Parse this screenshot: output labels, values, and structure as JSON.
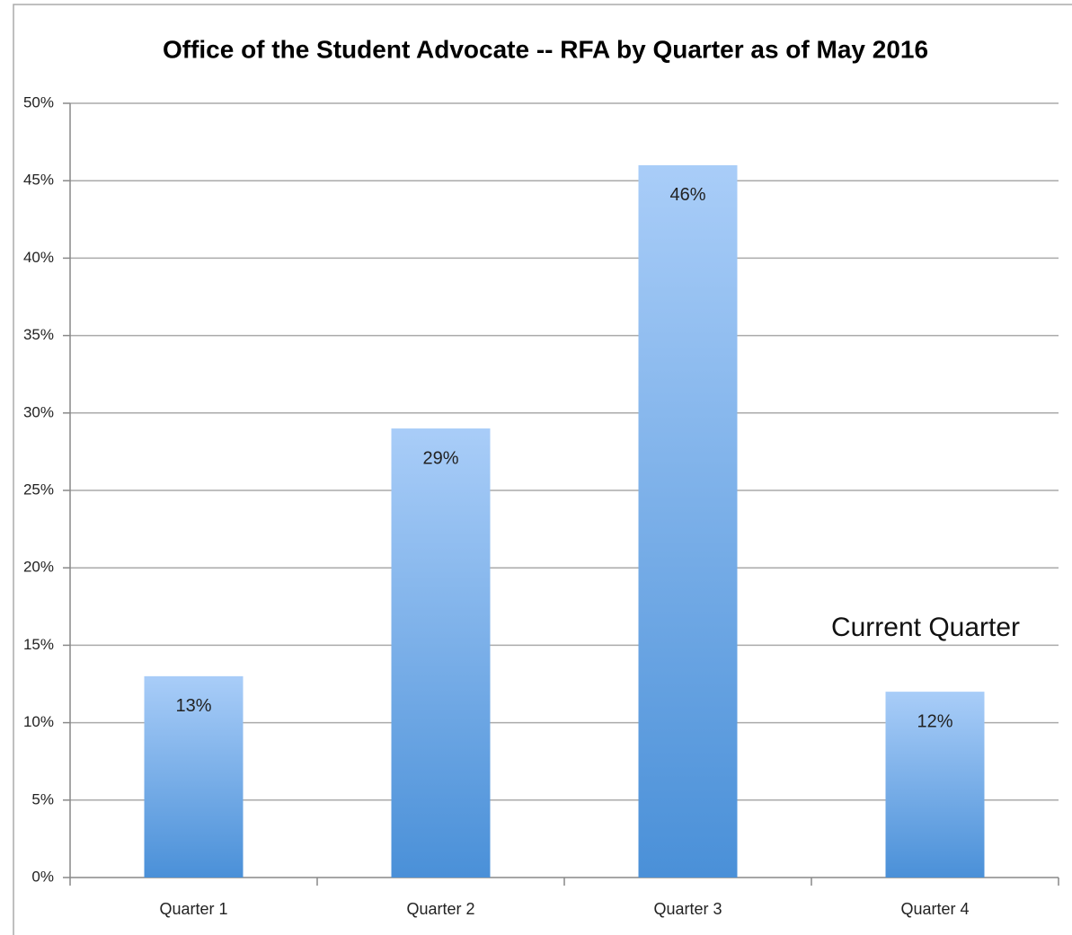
{
  "chart_data": {
    "type": "bar",
    "title": "Office of the Student Advocate -- RFA by Quarter as of May 2016",
    "categories": [
      "Quarter 1",
      "Quarter 2",
      "Quarter 3",
      "Quarter 4"
    ],
    "values": [
      13,
      29,
      46,
      12
    ],
    "value_labels": [
      "13%",
      "29%",
      "46%",
      "12%"
    ],
    "color_top": "#a9cdf8",
    "color_bottom": "#4a90d8",
    "ylim": [
      0,
      50
    ],
    "yticks": [
      {
        "value": 0,
        "label": "0%"
      },
      {
        "value": 5,
        "label": "5%"
      },
      {
        "value": 10,
        "label": "10%"
      },
      {
        "value": 15,
        "label": "15%"
      },
      {
        "value": 20,
        "label": "20%"
      },
      {
        "value": 25,
        "label": "25%"
      },
      {
        "value": 30,
        "label": "30%"
      },
      {
        "value": 35,
        "label": "35%"
      },
      {
        "value": 40,
        "label": "40%"
      },
      {
        "value": 45,
        "label": "45%"
      },
      {
        "value": 50,
        "label": "50%"
      }
    ],
    "grid": true,
    "annotation": "Current Quarter"
  }
}
